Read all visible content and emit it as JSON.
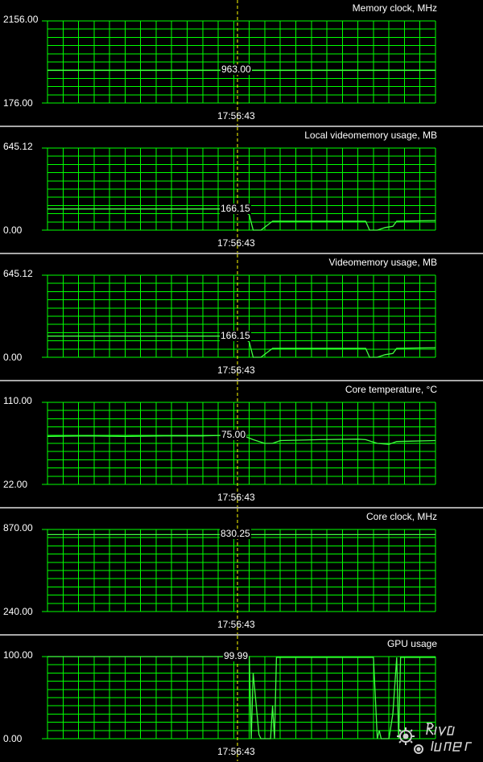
{
  "time_label": "17:56:43",
  "colors": {
    "grid": "#00ff00",
    "line": "#40ff40",
    "cursor": "#ffff00",
    "separator": "#a8a8a8"
  },
  "watermark": "RivaTuner",
  "chart_data": [
    {
      "type": "line",
      "title": "Memory clock, MHz",
      "ymax_label": "2156.00",
      "ymin_label": "176.00",
      "ylim": [
        176,
        2156
      ],
      "cursor_value": "963.00",
      "series": [
        {
          "x": [
            0,
            1
          ],
          "y": [
            963,
            963
          ]
        }
      ]
    },
    {
      "type": "line",
      "title": "Local videomemory usage, MB",
      "ymax_label": "645.12",
      "ymin_label": "0.00",
      "ylim": [
        0,
        645.12
      ],
      "cursor_value": "166.15",
      "series": [
        {
          "x": [
            0,
            0.5,
            0.52,
            0.53,
            0.55,
            0.58,
            0.6,
            0.82,
            0.83,
            0.85,
            0.87,
            0.89,
            0.9,
            1
          ],
          "y": [
            166.15,
            166.15,
            120,
            0,
            0,
            70,
            70,
            70,
            0,
            0,
            20,
            30,
            70,
            75
          ]
        }
      ]
    },
    {
      "type": "line",
      "title": "Videomemory usage, MB",
      "ymax_label": "645.12",
      "ymin_label": "0.00",
      "ylim": [
        0,
        645.12
      ],
      "cursor_value": "166.15",
      "series": [
        {
          "x": [
            0,
            0.5,
            0.52,
            0.53,
            0.55,
            0.58,
            0.6,
            0.82,
            0.83,
            0.85,
            0.87,
            0.89,
            0.9,
            1
          ],
          "y": [
            166.15,
            166.15,
            120,
            0,
            0,
            70,
            70,
            70,
            0,
            0,
            20,
            30,
            70,
            75
          ]
        }
      ]
    },
    {
      "type": "line",
      "title": "Core temperature, °C",
      "ymax_label": "110.00",
      "ymin_label": "22.00",
      "ylim": [
        22,
        110
      ],
      "cursor_value": "75.00",
      "series": [
        {
          "x": [
            0,
            0.1,
            0.2,
            0.3,
            0.4,
            0.5,
            0.53,
            0.56,
            0.58,
            0.6,
            0.7,
            0.8,
            0.82,
            0.85,
            0.88,
            0.9,
            1
          ],
          "y": [
            73.5,
            74,
            73.5,
            74,
            74,
            75,
            70,
            66,
            66,
            69,
            70,
            70.5,
            70,
            66,
            65,
            68,
            69
          ]
        }
      ]
    },
    {
      "type": "line",
      "title": "Core clock, MHz",
      "ymax_label": "870.00",
      "ymin_label": "240.00",
      "ylim": [
        240,
        870
      ],
      "cursor_value": "830.25",
      "series": [
        {
          "x": [
            0,
            1
          ],
          "y": [
            830.25,
            830.25
          ]
        }
      ]
    },
    {
      "type": "line",
      "title": "GPU usage",
      "ymax_label": "100.00",
      "ymin_label": "0.00",
      "ylim": [
        0,
        100
      ],
      "cursor_value": "99.99",
      "series": [
        {
          "x": [
            0,
            0.5,
            0.52,
            0.525,
            0.53,
            0.545,
            0.55,
            0.575,
            0.58,
            0.585,
            0.59,
            0.6,
            0.61,
            0.84,
            0.845,
            0.85,
            0.855,
            0.86,
            0.87,
            0.88,
            0.89,
            0.9,
            0.905,
            0.91,
            0.92,
            1
          ],
          "y": [
            99.99,
            99.99,
            99.99,
            0,
            80,
            5,
            0,
            0,
            40,
            0,
            99,
            99,
            99,
            99,
            50,
            0,
            10,
            0,
            0,
            0,
            30,
            99,
            0,
            99,
            99,
            99
          ]
        }
      ]
    }
  ]
}
